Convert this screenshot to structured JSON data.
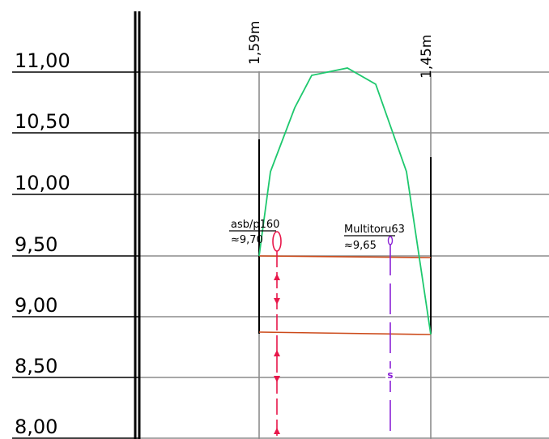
{
  "elevations": [
    "11,00",
    "10,50",
    "10,00",
    "9,50",
    "9,00",
    "8,50",
    "8,00"
  ],
  "dimensions": {
    "left": "1,59m",
    "right": "1,45m"
  },
  "pipes": [
    {
      "name": "asb/p160",
      "level": "≈9,70",
      "color": "#e8174a"
    },
    {
      "name": "Multitoru63",
      "level": "≈9,65",
      "color": "#8a22d6",
      "marker": "s"
    }
  ],
  "colors": {
    "grid": "#8c8c8c",
    "profile": "#1ec86e",
    "trench": "#cc4a1a",
    "axis": "#000000"
  }
}
